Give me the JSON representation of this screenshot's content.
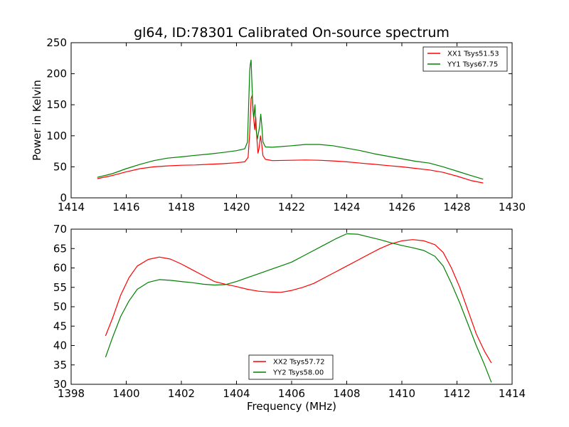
{
  "chart_data": [
    {
      "type": "line",
      "title": "gl64, ID:78301 Calibrated On-source spectrum",
      "xlabel": "",
      "ylabel": "Power in Kelvin",
      "xlim": [
        1414,
        1430
      ],
      "ylim": [
        0,
        250
      ],
      "xticks": [
        "1414",
        "1416",
        "1418",
        "1420",
        "1422",
        "1424",
        "1426",
        "1428",
        "1430"
      ],
      "yticks": [
        "0",
        "50",
        "100",
        "150",
        "200",
        "250"
      ],
      "legend_position": "top-right",
      "series": [
        {
          "name": "XX1 Tsys51.53",
          "color": "#ff0000",
          "points": [
            [
              1414.95,
              31
            ],
            [
              1415.5,
              36
            ],
            [
              1416.0,
              42
            ],
            [
              1416.5,
              47
            ],
            [
              1417.0,
              50
            ],
            [
              1417.5,
              51.5
            ],
            [
              1418.0,
              52.5
            ],
            [
              1418.5,
              53
            ],
            [
              1419.0,
              54
            ],
            [
              1419.5,
              55
            ],
            [
              1420.0,
              56.5
            ],
            [
              1420.3,
              58
            ],
            [
              1420.42,
              65
            ],
            [
              1420.48,
              105
            ],
            [
              1420.53,
              160
            ],
            [
              1420.57,
              165
            ],
            [
              1420.62,
              130
            ],
            [
              1420.66,
              110
            ],
            [
              1420.7,
              130
            ],
            [
              1420.74,
              95
            ],
            [
              1420.78,
              72
            ],
            [
              1420.82,
              80
            ],
            [
              1420.87,
              100
            ],
            [
              1420.91,
              88
            ],
            [
              1420.96,
              68
            ],
            [
              1421.05,
              62
            ],
            [
              1421.3,
              60
            ],
            [
              1422.0,
              60.5
            ],
            [
              1422.5,
              61
            ],
            [
              1423.0,
              60.5
            ],
            [
              1423.5,
              59.5
            ],
            [
              1424.0,
              58
            ],
            [
              1424.5,
              56
            ],
            [
              1425.0,
              54
            ],
            [
              1425.5,
              52
            ],
            [
              1426.0,
              50
            ],
            [
              1426.5,
              47.5
            ],
            [
              1427.0,
              45
            ],
            [
              1427.5,
              41
            ],
            [
              1428.0,
              35
            ],
            [
              1428.5,
              28
            ],
            [
              1428.95,
              24
            ]
          ]
        },
        {
          "name": "YY1 Tsys67.75",
          "color": "#008000",
          "points": [
            [
              1414.95,
              33
            ],
            [
              1415.5,
              39
            ],
            [
              1416.0,
              47
            ],
            [
              1416.5,
              54
            ],
            [
              1417.0,
              60
            ],
            [
              1417.5,
              64
            ],
            [
              1418.0,
              66
            ],
            [
              1418.5,
              68.5
            ],
            [
              1419.0,
              70.5
            ],
            [
              1419.5,
              73
            ],
            [
              1420.0,
              76
            ],
            [
              1420.3,
              79
            ],
            [
              1420.4,
              90
            ],
            [
              1420.44,
              150
            ],
            [
              1420.48,
              205
            ],
            [
              1420.5,
              215
            ],
            [
              1420.53,
              222
            ],
            [
              1420.56,
              185
            ],
            [
              1420.6,
              140
            ],
            [
              1420.63,
              130
            ],
            [
              1420.67,
              150
            ],
            [
              1420.71,
              110
            ],
            [
              1420.76,
              95
            ],
            [
              1420.8,
              105
            ],
            [
              1420.84,
              115
            ],
            [
              1420.88,
              135
            ],
            [
              1420.92,
              115
            ],
            [
              1420.96,
              90
            ],
            [
              1421.05,
              82
            ],
            [
              1421.3,
              81.5
            ],
            [
              1422.0,
              84
            ],
            [
              1422.5,
              86
            ],
            [
              1423.0,
              86
            ],
            [
              1423.5,
              84
            ],
            [
              1424.0,
              80
            ],
            [
              1424.5,
              76
            ],
            [
              1425.0,
              71
            ],
            [
              1425.5,
              67
            ],
            [
              1426.0,
              63
            ],
            [
              1426.5,
              59
            ],
            [
              1427.0,
              56
            ],
            [
              1427.5,
              50
            ],
            [
              1428.0,
              43
            ],
            [
              1428.5,
              36
            ],
            [
              1428.95,
              30
            ]
          ]
        }
      ]
    },
    {
      "type": "line",
      "title": "",
      "xlabel": "Frequency (MHz)",
      "ylabel": "",
      "xlim": [
        1398,
        1414
      ],
      "ylim": [
        30,
        70
      ],
      "xticks": [
        "1398",
        "1400",
        "1402",
        "1404",
        "1406",
        "1408",
        "1410",
        "1412",
        "1414"
      ],
      "yticks": [
        "30",
        "35",
        "40",
        "45",
        "50",
        "55",
        "60",
        "65",
        "70"
      ],
      "legend_position": "bottom-center",
      "series": [
        {
          "name": "XX2 Tsys57.72",
          "color": "#ff0000",
          "points": [
            [
              1399.25,
              42.5
            ],
            [
              1399.5,
              47
            ],
            [
              1399.8,
              53
            ],
            [
              1400.1,
              57.5
            ],
            [
              1400.4,
              60.5
            ],
            [
              1400.8,
              62.2
            ],
            [
              1401.2,
              62.8
            ],
            [
              1401.6,
              62.3
            ],
            [
              1402.0,
              61
            ],
            [
              1402.4,
              59.5
            ],
            [
              1402.8,
              58
            ],
            [
              1403.2,
              56.5
            ],
            [
              1403.6,
              55.8
            ],
            [
              1404.0,
              55.2
            ],
            [
              1404.4,
              54.5
            ],
            [
              1404.8,
              54
            ],
            [
              1405.2,
              53.8
            ],
            [
              1405.6,
              53.7
            ],
            [
              1406.0,
              54.2
            ],
            [
              1406.4,
              55
            ],
            [
              1406.8,
              56
            ],
            [
              1407.2,
              57.5
            ],
            [
              1407.6,
              59
            ],
            [
              1408.0,
              60.5
            ],
            [
              1408.4,
              62
            ],
            [
              1408.8,
              63.5
            ],
            [
              1409.2,
              65
            ],
            [
              1409.6,
              66.2
            ],
            [
              1410.0,
              67
            ],
            [
              1410.4,
              67.3
            ],
            [
              1410.8,
              67
            ],
            [
              1411.2,
              66
            ],
            [
              1411.5,
              64
            ],
            [
              1411.8,
              60
            ],
            [
              1412.1,
              55
            ],
            [
              1412.4,
              49
            ],
            [
              1412.7,
              43
            ],
            [
              1413.0,
              38.5
            ],
            [
              1413.25,
              35.5
            ]
          ]
        },
        {
          "name": "YY2 Tsys58.00",
          "color": "#008000",
          "points": [
            [
              1399.25,
              37
            ],
            [
              1399.5,
              42
            ],
            [
              1399.8,
              47.5
            ],
            [
              1400.1,
              51.5
            ],
            [
              1400.4,
              54.5
            ],
            [
              1400.8,
              56.3
            ],
            [
              1401.2,
              57
            ],
            [
              1401.6,
              56.8
            ],
            [
              1402.0,
              56.5
            ],
            [
              1402.4,
              56.2
            ],
            [
              1402.8,
              55.8
            ],
            [
              1403.2,
              55.6
            ],
            [
              1403.6,
              55.7
            ],
            [
              1404.0,
              56.5
            ],
            [
              1404.4,
              57.5
            ],
            [
              1404.8,
              58.5
            ],
            [
              1405.2,
              59.5
            ],
            [
              1405.6,
              60.5
            ],
            [
              1406.0,
              61.5
            ],
            [
              1406.4,
              63
            ],
            [
              1406.8,
              64.5
            ],
            [
              1407.2,
              66
            ],
            [
              1407.6,
              67.5
            ],
            [
              1408.0,
              68.8
            ],
            [
              1408.4,
              68.7
            ],
            [
              1408.8,
              68
            ],
            [
              1409.2,
              67.3
            ],
            [
              1409.6,
              66.5
            ],
            [
              1410.0,
              65.8
            ],
            [
              1410.4,
              65.2
            ],
            [
              1410.8,
              64.5
            ],
            [
              1411.2,
              63
            ],
            [
              1411.5,
              60.5
            ],
            [
              1411.8,
              56
            ],
            [
              1412.1,
              51
            ],
            [
              1412.4,
              45.5
            ],
            [
              1412.7,
              40
            ],
            [
              1413.0,
              35
            ],
            [
              1413.25,
              30.5
            ]
          ]
        }
      ]
    }
  ]
}
